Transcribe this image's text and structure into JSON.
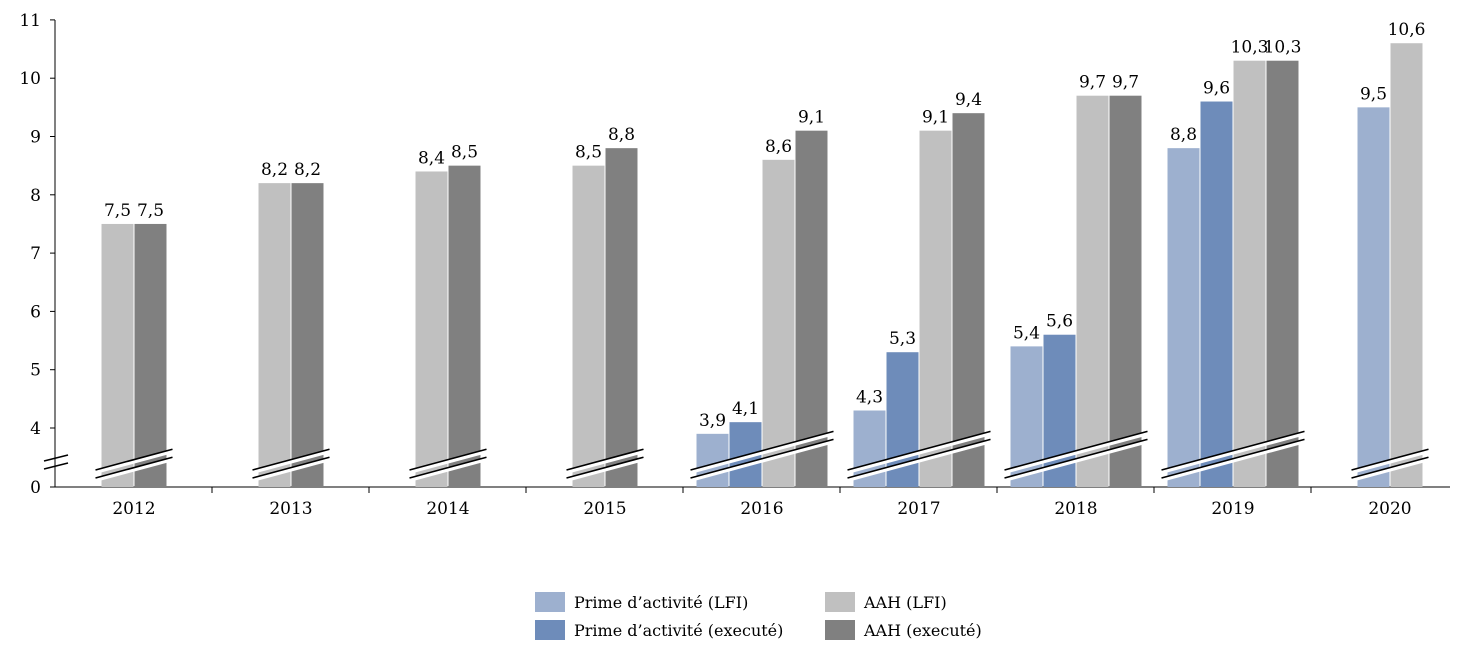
{
  "chart_data": {
    "type": "bar",
    "categories": [
      "2012",
      "2013",
      "2014",
      "2015",
      "2016",
      "2017",
      "2018",
      "2019",
      "2020"
    ],
    "series": [
      {
        "name": "Prime d’activité (LFI)",
        "color": "#9db0cf",
        "values": [
          null,
          null,
          null,
          null,
          3.9,
          4.3,
          5.4,
          8.8,
          9.5
        ],
        "labels": [
          null,
          null,
          null,
          null,
          "3,9",
          "4,3",
          "5,4",
          "8,8",
          "9,5"
        ]
      },
      {
        "name": "Prime d’activité (executé)",
        "color": "#6e8cba",
        "values": [
          null,
          null,
          null,
          null,
          4.1,
          5.3,
          5.6,
          9.6,
          null
        ],
        "labels": [
          null,
          null,
          null,
          null,
          "4,1",
          "5,3",
          "5,6",
          "9,6",
          null
        ]
      },
      {
        "name": "AAH (LFI)",
        "color": "#c0c0c0",
        "values": [
          7.5,
          8.2,
          8.4,
          8.5,
          8.6,
          9.1,
          9.7,
          10.3,
          10.6
        ],
        "labels": [
          "7,5",
          "8,2",
          "8,4",
          "8,5",
          "8,6",
          "9,1",
          "9,7",
          "10,3",
          "10,6"
        ]
      },
      {
        "name": "AAH (executé)",
        "color": "#808080",
        "values": [
          7.5,
          8.2,
          8.5,
          8.8,
          9.1,
          9.4,
          9.7,
          10.3,
          null
        ],
        "labels": [
          "7,5",
          "8,2",
          "8,5",
          "8,8",
          "9,1",
          "9,4",
          "9,7",
          "10,3",
          null
        ]
      }
    ],
    "y_ticks": [
      "0",
      "4",
      "5",
      "6",
      "7",
      "8",
      "9",
      "10",
      "11"
    ],
    "ylim": [
      0,
      11
    ],
    "axis_break": "between 0 and 4",
    "grid": false,
    "legend_position": "bottom"
  }
}
